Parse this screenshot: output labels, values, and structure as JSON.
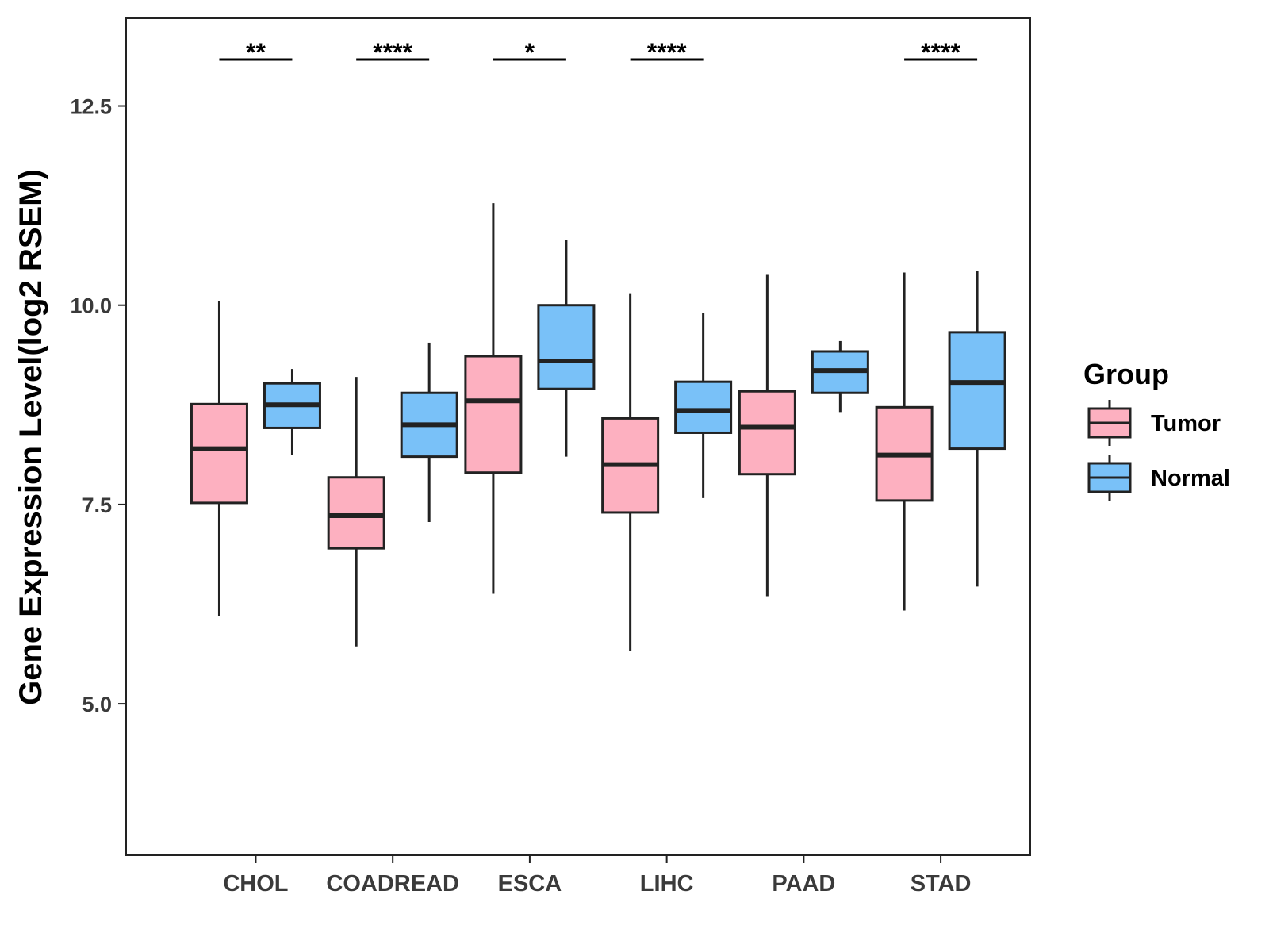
{
  "chart_data": {
    "type": "box",
    "title": "",
    "xlabel": "",
    "ylabel": "Gene Expression Level(log2 RSEM)",
    "ylim": [
      3.1,
      13.6
    ],
    "yticks": [
      5.0,
      7.5,
      10.0,
      12.5
    ],
    "ytick_labels": [
      "5.0",
      "7.5",
      "10.0",
      "12.5"
    ],
    "grid": false,
    "categories": [
      "CHOL",
      "COADREAD",
      "ESCA",
      "LIHC",
      "PAAD",
      "STAD"
    ],
    "legend": {
      "title": "Group",
      "placement": "right",
      "entries": [
        "Tumor",
        "Normal"
      ]
    },
    "series": [
      {
        "name": "Tumor",
        "color": "#fdb0c0",
        "boxes": [
          {
            "whislo": 6.1,
            "q1": 7.52,
            "med": 8.2,
            "q3": 8.76,
            "whishi": 10.05
          },
          {
            "whislo": 5.72,
            "q1": 6.95,
            "med": 7.36,
            "q3": 7.84,
            "whishi": 9.1
          },
          {
            "whislo": 6.38,
            "q1": 7.9,
            "med": 8.8,
            "q3": 9.36,
            "whishi": 11.28
          },
          {
            "whislo": 5.66,
            "q1": 7.4,
            "med": 8.0,
            "q3": 8.58,
            "whishi": 10.15
          },
          {
            "whislo": 6.35,
            "q1": 7.88,
            "med": 8.47,
            "q3": 8.92,
            "whishi": 10.38
          },
          {
            "whislo": 6.17,
            "q1": 7.55,
            "med": 8.12,
            "q3": 8.72,
            "whishi": 10.41
          }
        ]
      },
      {
        "name": "Normal",
        "color": "#79c1f8",
        "boxes": [
          {
            "whislo": 8.12,
            "q1": 8.46,
            "med": 8.75,
            "q3": 9.02,
            "whishi": 9.2
          },
          {
            "whislo": 7.28,
            "q1": 8.1,
            "med": 8.5,
            "q3": 8.9,
            "whishi": 9.53
          },
          {
            "whislo": 8.1,
            "q1": 8.95,
            "med": 9.3,
            "q3": 10.0,
            "whishi": 10.82
          },
          {
            "whislo": 7.58,
            "q1": 8.4,
            "med": 8.68,
            "q3": 9.04,
            "whishi": 9.9
          },
          {
            "whislo": 8.66,
            "q1": 8.9,
            "med": 9.18,
            "q3": 9.42,
            "whishi": 9.55
          },
          {
            "whislo": 6.47,
            "q1": 8.2,
            "med": 9.03,
            "q3": 9.66,
            "whishi": 10.43
          }
        ]
      }
    ],
    "significance": [
      {
        "category": "CHOL",
        "label": "**"
      },
      {
        "category": "COADREAD",
        "label": "****"
      },
      {
        "category": "ESCA",
        "label": "*"
      },
      {
        "category": "LIHC",
        "label": "****"
      },
      {
        "category": "PAAD",
        "label": ""
      },
      {
        "category": "STAD",
        "label": "****"
      }
    ]
  }
}
